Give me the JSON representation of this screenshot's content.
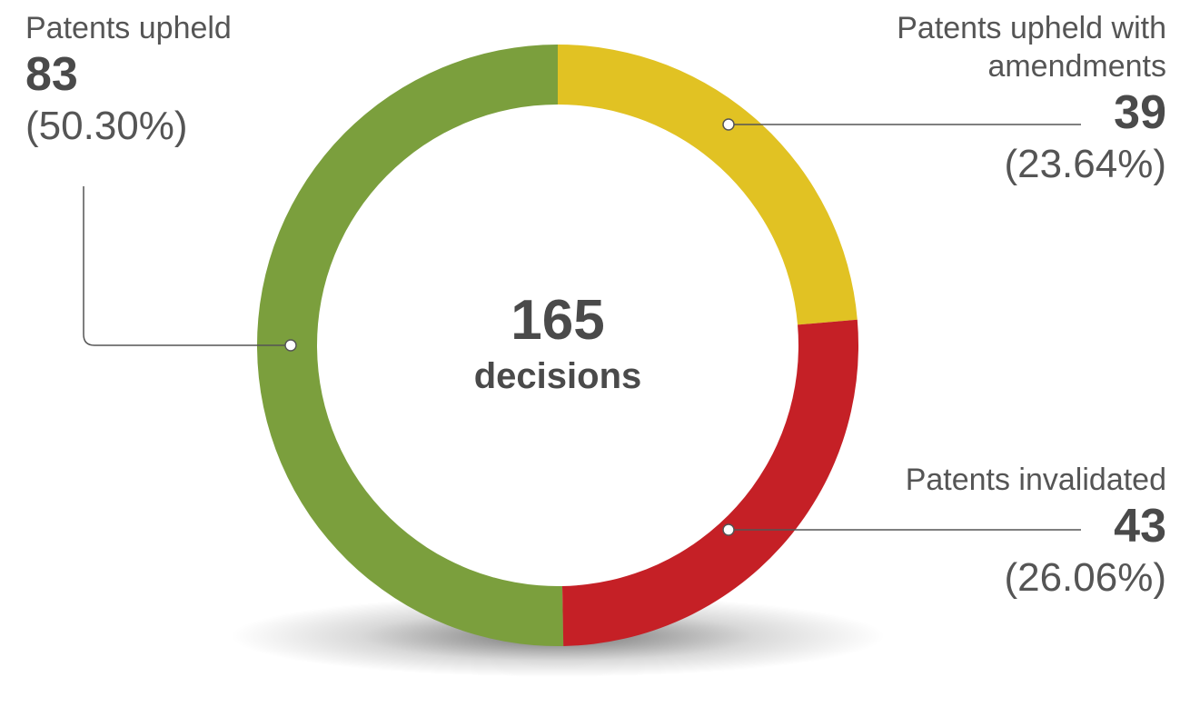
{
  "chart_data": {
    "type": "pie",
    "donut": true,
    "categories": [
      "Patents upheld",
      "Patents upheld with amendments",
      "Patents invalidated"
    ],
    "values": [
      83,
      39,
      43
    ],
    "percentages": [
      {
        "value": 50.3,
        "label": "(50.30%)"
      },
      {
        "value": 23.64,
        "label": "(23.64%)"
      },
      {
        "value": 26.06,
        "label": "(26.06%)"
      }
    ],
    "colors": [
      "#7b9f3d",
      "#e1c223",
      "#c52026"
    ],
    "total": 165,
    "total_label": "decisions"
  }
}
